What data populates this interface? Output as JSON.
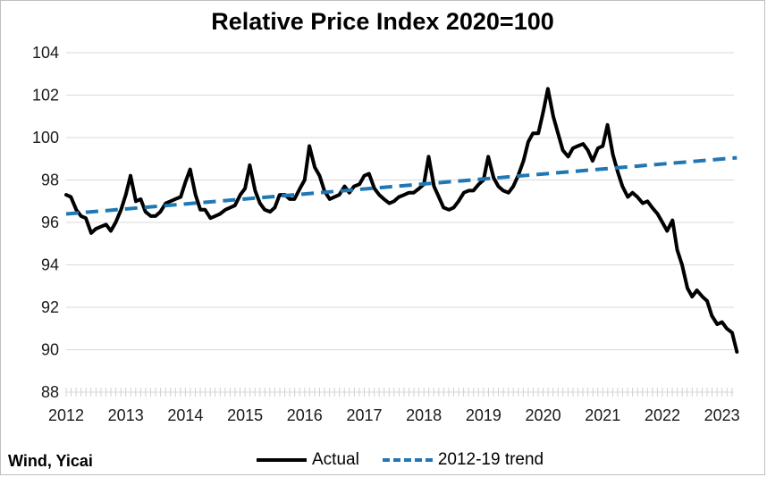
{
  "chart_data": {
    "type": "line",
    "title": "Relative Price Index 2020=100",
    "source": "Wind, Yicai",
    "ylim": [
      88,
      104
    ],
    "yticks": [
      88,
      90,
      92,
      94,
      96,
      98,
      100,
      102,
      104
    ],
    "xlim": [
      2012.0,
      2023.2
    ],
    "xticks": [
      2012,
      2013,
      2014,
      2015,
      2016,
      2017,
      2018,
      2019,
      2020,
      2021,
      2022,
      2023
    ],
    "grid": "horizontal",
    "legend_position": "bottom",
    "colors": {
      "actual": "#000000",
      "trend": "#1f77b4"
    },
    "series": [
      {
        "name": "Actual",
        "style": "solid",
        "points": [
          [
            2012.0,
            97.3
          ],
          [
            2012.08,
            97.2
          ],
          [
            2012.17,
            96.6
          ],
          [
            2012.25,
            96.3
          ],
          [
            2012.33,
            96.2
          ],
          [
            2012.42,
            95.5
          ],
          [
            2012.5,
            95.7
          ],
          [
            2012.58,
            95.8
          ],
          [
            2012.67,
            95.9
          ],
          [
            2012.75,
            95.6
          ],
          [
            2012.83,
            96.0
          ],
          [
            2012.92,
            96.6
          ],
          [
            2013.0,
            97.3
          ],
          [
            2013.08,
            98.2
          ],
          [
            2013.17,
            97.0
          ],
          [
            2013.25,
            97.1
          ],
          [
            2013.33,
            96.5
          ],
          [
            2013.42,
            96.3
          ],
          [
            2013.5,
            96.3
          ],
          [
            2013.58,
            96.5
          ],
          [
            2013.67,
            96.9
          ],
          [
            2013.75,
            97.0
          ],
          [
            2013.83,
            97.1
          ],
          [
            2013.92,
            97.2
          ],
          [
            2014.0,
            97.9
          ],
          [
            2014.08,
            98.5
          ],
          [
            2014.17,
            97.3
          ],
          [
            2014.25,
            96.6
          ],
          [
            2014.33,
            96.6
          ],
          [
            2014.42,
            96.2
          ],
          [
            2014.5,
            96.3
          ],
          [
            2014.58,
            96.4
          ],
          [
            2014.67,
            96.6
          ],
          [
            2014.75,
            96.7
          ],
          [
            2014.83,
            96.8
          ],
          [
            2014.92,
            97.3
          ],
          [
            2015.0,
            97.6
          ],
          [
            2015.08,
            98.7
          ],
          [
            2015.17,
            97.5
          ],
          [
            2015.25,
            96.9
          ],
          [
            2015.33,
            96.6
          ],
          [
            2015.42,
            96.5
          ],
          [
            2015.5,
            96.7
          ],
          [
            2015.58,
            97.3
          ],
          [
            2015.67,
            97.3
          ],
          [
            2015.75,
            97.1
          ],
          [
            2015.83,
            97.1
          ],
          [
            2015.92,
            97.6
          ],
          [
            2016.0,
            98.0
          ],
          [
            2016.08,
            99.6
          ],
          [
            2016.17,
            98.6
          ],
          [
            2016.25,
            98.2
          ],
          [
            2016.33,
            97.5
          ],
          [
            2016.42,
            97.1
          ],
          [
            2016.5,
            97.2
          ],
          [
            2016.58,
            97.3
          ],
          [
            2016.67,
            97.7
          ],
          [
            2016.75,
            97.4
          ],
          [
            2016.83,
            97.7
          ],
          [
            2016.92,
            97.8
          ],
          [
            2017.0,
            98.2
          ],
          [
            2017.08,
            98.3
          ],
          [
            2017.17,
            97.6
          ],
          [
            2017.25,
            97.3
          ],
          [
            2017.33,
            97.1
          ],
          [
            2017.42,
            96.9
          ],
          [
            2017.5,
            97.0
          ],
          [
            2017.58,
            97.2
          ],
          [
            2017.67,
            97.3
          ],
          [
            2017.75,
            97.4
          ],
          [
            2017.83,
            97.4
          ],
          [
            2017.92,
            97.6
          ],
          [
            2018.0,
            97.8
          ],
          [
            2018.08,
            99.1
          ],
          [
            2018.17,
            97.7
          ],
          [
            2018.25,
            97.2
          ],
          [
            2018.33,
            96.7
          ],
          [
            2018.42,
            96.6
          ],
          [
            2018.5,
            96.7
          ],
          [
            2018.58,
            97.0
          ],
          [
            2018.67,
            97.4
          ],
          [
            2018.75,
            97.5
          ],
          [
            2018.83,
            97.5
          ],
          [
            2018.92,
            97.8
          ],
          [
            2019.0,
            98.0
          ],
          [
            2019.08,
            99.1
          ],
          [
            2019.17,
            98.1
          ],
          [
            2019.25,
            97.7
          ],
          [
            2019.33,
            97.5
          ],
          [
            2019.42,
            97.4
          ],
          [
            2019.5,
            97.7
          ],
          [
            2019.58,
            98.2
          ],
          [
            2019.67,
            98.9
          ],
          [
            2019.75,
            99.8
          ],
          [
            2019.83,
            100.2
          ],
          [
            2019.92,
            100.2
          ],
          [
            2020.0,
            101.2
          ],
          [
            2020.08,
            102.3
          ],
          [
            2020.17,
            101.0
          ],
          [
            2020.25,
            100.2
          ],
          [
            2020.33,
            99.4
          ],
          [
            2020.42,
            99.1
          ],
          [
            2020.5,
            99.5
          ],
          [
            2020.58,
            99.6
          ],
          [
            2020.67,
            99.7
          ],
          [
            2020.75,
            99.4
          ],
          [
            2020.83,
            98.9
          ],
          [
            2020.92,
            99.5
          ],
          [
            2021.0,
            99.6
          ],
          [
            2021.08,
            100.6
          ],
          [
            2021.17,
            99.2
          ],
          [
            2021.25,
            98.4
          ],
          [
            2021.33,
            97.7
          ],
          [
            2021.42,
            97.2
          ],
          [
            2021.5,
            97.4
          ],
          [
            2021.58,
            97.2
          ],
          [
            2021.67,
            96.9
          ],
          [
            2021.75,
            97.0
          ],
          [
            2021.83,
            96.7
          ],
          [
            2021.92,
            96.4
          ],
          [
            2022.0,
            96.0
          ],
          [
            2022.08,
            95.6
          ],
          [
            2022.17,
            96.1
          ],
          [
            2022.25,
            94.7
          ],
          [
            2022.33,
            94.0
          ],
          [
            2022.42,
            92.9
          ],
          [
            2022.5,
            92.5
          ],
          [
            2022.58,
            92.8
          ],
          [
            2022.67,
            92.5
          ],
          [
            2022.75,
            92.3
          ],
          [
            2022.83,
            91.6
          ],
          [
            2022.92,
            91.2
          ],
          [
            2023.0,
            91.3
          ],
          [
            2023.08,
            91.0
          ],
          [
            2023.17,
            90.8
          ],
          [
            2023.25,
            89.9
          ]
        ]
      },
      {
        "name": "2012-19 trend",
        "style": "dashed",
        "points": [
          [
            2012.0,
            96.4
          ],
          [
            2023.25,
            99.05
          ]
        ]
      }
    ]
  }
}
